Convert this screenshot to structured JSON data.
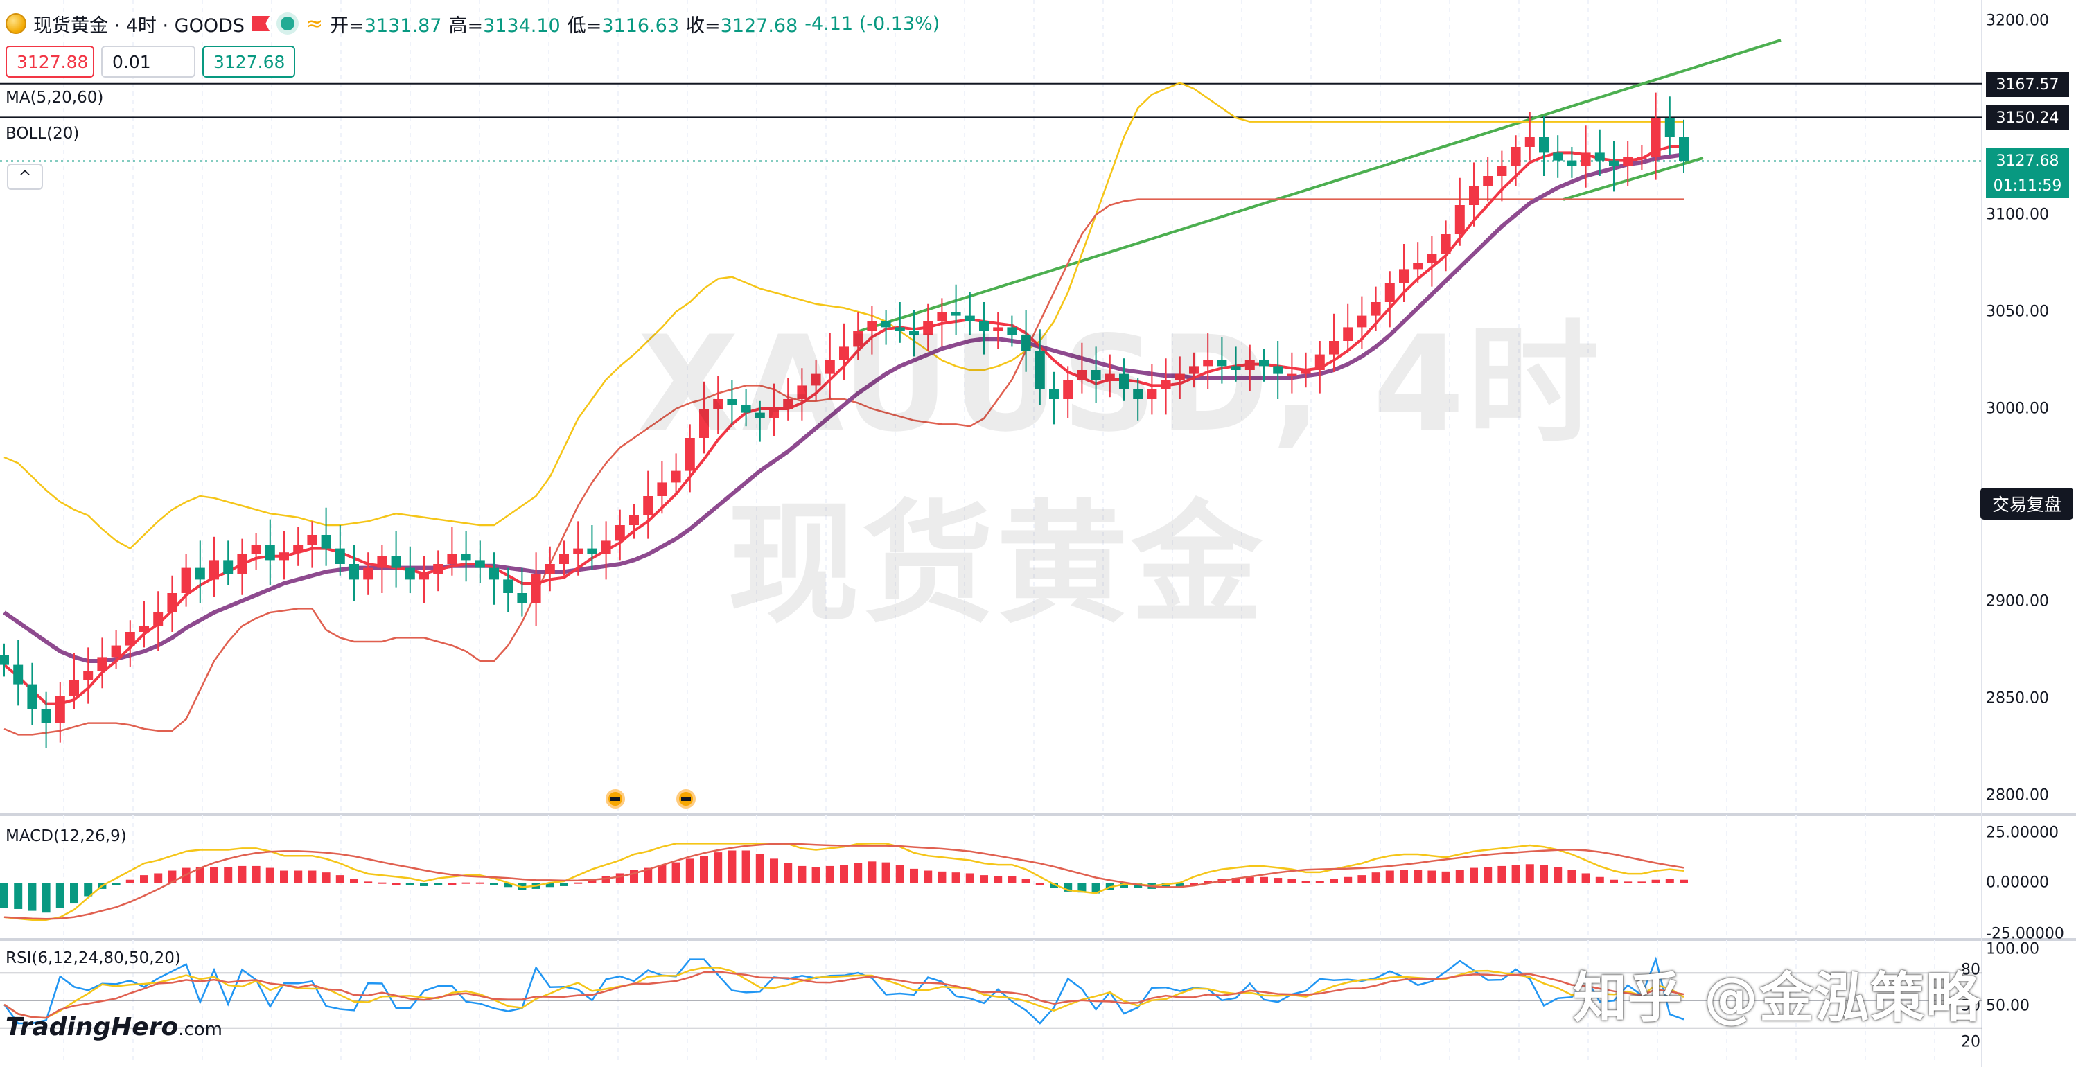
{
  "header": {
    "title": "现货黄金 · 4时 · GOODS",
    "open_label": "开=",
    "open": "3131.87",
    "high_label": "高=",
    "high": "3134.10",
    "low_label": "低=",
    "low": "3116.63",
    "close_label": "收=",
    "close": "3127.68",
    "change": "-4.11 (-0.13%)",
    "live_icon": "live-dot",
    "wave_icon": "≈"
  },
  "order_boxes": {
    "sell": "3127.88",
    "qty": "0.01",
    "buy": "3127.68"
  },
  "indicators": {
    "ma": "MA(5,20,60)",
    "boll": "BOLL(20)",
    "macd": "MACD(12,26,9)",
    "rsi": "RSI(6,12,24,80,50,20)",
    "collapse": "^"
  },
  "price_axis": {
    "ticks": [
      "3200.00",
      "3100.00",
      "3050.00",
      "3000.00",
      "2900.00",
      "2850.00",
      "2800.00"
    ],
    "tag_high": "3167.57",
    "tag_res": "3150.24",
    "tag_last": "3127.68",
    "countdown": "01:11:59",
    "replay": "交易复盘"
  },
  "macd_axis": [
    "25.00000",
    "0.00000",
    "-25.00000"
  ],
  "rsi_axis": [
    "100.00",
    "80",
    "50",
    "50.00",
    "20"
  ],
  "watermark": {
    "line1": "XAUUSD, 4时",
    "line2": "现货黄金"
  },
  "logo": {
    "name": "TradingHero",
    "suffix": ".com"
  },
  "credit": "知乎 @金泓策略",
  "colors": {
    "up": "#f23645",
    "down": "#089981",
    "ma5": "#f23645",
    "ma20": "#8e4a8f",
    "boll_up": "#f5c518",
    "boll_low": "#e06050",
    "trend": "#4caf50"
  },
  "chart_data": {
    "type": "candlestick",
    "symbol": "XAUUSD",
    "timeframe": "4时",
    "ylim": [
      2790,
      3210
    ],
    "closes": [
      2868,
      2858,
      2845,
      2838,
      2852,
      2860,
      2865,
      2872,
      2878,
      2885,
      2888,
      2895,
      2905,
      2918,
      2912,
      2922,
      2915,
      2925,
      2930,
      2922,
      2926,
      2930,
      2935,
      2928,
      2920,
      2912,
      2918,
      2924,
      2918,
      2912,
      2915,
      2920,
      2925,
      2922,
      2918,
      2912,
      2905,
      2900,
      2915,
      2920,
      2925,
      2928,
      2925,
      2932,
      2940,
      2945,
      2955,
      2962,
      2968,
      2985,
      3000,
      3005,
      3002,
      2998,
      2995,
      3000,
      3005,
      3012,
      3018,
      3025,
      3032,
      3040,
      3045,
      3042,
      3040,
      3038,
      3045,
      3050,
      3048,
      3045,
      3040,
      3042,
      3038,
      3030,
      3010,
      3005,
      3015,
      3020,
      3015,
      3018,
      3010,
      3005,
      3010,
      3015,
      3018,
      3022,
      3025,
      3022,
      3020,
      3025,
      3022,
      3018,
      3018,
      3020,
      3028,
      3035,
      3042,
      3048,
      3055,
      3065,
      3072,
      3075,
      3080,
      3090,
      3105,
      3115,
      3120,
      3125,
      3135,
      3140,
      3132,
      3128,
      3125,
      3132,
      3128,
      3125,
      3130,
      3130,
      3150,
      3140,
      3127.68
    ],
    "ma5": [
      2868,
      2862,
      2855,
      2848,
      2848,
      2850,
      2856,
      2864,
      2870,
      2877,
      2884,
      2889,
      2896,
      2904,
      2909,
      2913,
      2916,
      2920,
      2923,
      2924,
      2924,
      2926,
      2928,
      2928,
      2926,
      2923,
      2920,
      2919,
      2918,
      2917,
      2915,
      2917,
      2919,
      2920,
      2920,
      2918,
      2914,
      2910,
      2910,
      2912,
      2913,
      2918,
      2923,
      2927,
      2931,
      2937,
      2942,
      2949,
      2956,
      2965,
      2974,
      2984,
      2992,
      2998,
      3000,
      3000,
      3000,
      3003,
      3008,
      3015,
      3022,
      3030,
      3037,
      3041,
      3042,
      3041,
      3042,
      3044,
      3045,
      3046,
      3045,
      3044,
      3043,
      3039,
      3032,
      3025,
      3019,
      3016,
      3013,
      3015,
      3015,
      3014,
      3012,
      3012,
      3013,
      3016,
      3019,
      3021,
      3022,
      3023,
      3023,
      3022,
      3021,
      3020,
      3021,
      3025,
      3030,
      3036,
      3044,
      3052,
      3060,
      3067,
      3073,
      3079,
      3088,
      3097,
      3105,
      3113,
      3120,
      3127,
      3130,
      3132,
      3132,
      3131,
      3129,
      3128,
      3128,
      3129,
      3133,
      3135,
      3135
    ],
    "ma20": [
      2895,
      2890,
      2885,
      2880,
      2875,
      2872,
      2870,
      2870,
      2871,
      2873,
      2875,
      2878,
      2882,
      2887,
      2891,
      2895,
      2898,
      2901,
      2904,
      2907,
      2910,
      2912,
      2914,
      2916,
      2917,
      2918,
      2918,
      2918,
      2918,
      2918,
      2918,
      2918,
      2919,
      2919,
      2919,
      2919,
      2918,
      2917,
      2916,
      2916,
      2916,
      2917,
      2918,
      2919,
      2920,
      2922,
      2925,
      2929,
      2933,
      2938,
      2944,
      2950,
      2956,
      2962,
      2968,
      2973,
      2978,
      2984,
      2990,
      2996,
      3002,
      3008,
      3013,
      3018,
      3022,
      3025,
      3028,
      3031,
      3033,
      3035,
      3036,
      3036,
      3035,
      3034,
      3032,
      3030,
      3028,
      3026,
      3024,
      3022,
      3020,
      3019,
      3018,
      3017,
      3017,
      3016,
      3016,
      3016,
      3016,
      3016,
      3016,
      3016,
      3016,
      3017,
      3018,
      3020,
      3023,
      3027,
      3032,
      3038,
      3045,
      3052,
      3059,
      3066,
      3073,
      3080,
      3087,
      3094,
      3100,
      3106,
      3110,
      3114,
      3117,
      3120,
      3122,
      3124,
      3126,
      3127,
      3129,
      3130,
      3131
    ],
    "boll_upper": [
      2975,
      2972,
      2965,
      2958,
      2952,
      2948,
      2945,
      2938,
      2932,
      2928,
      2935,
      2942,
      2948,
      2952,
      2955,
      2954,
      2952,
      2950,
      2948,
      2946,
      2945,
      2944,
      2942,
      2940,
      2940,
      2941,
      2942,
      2944,
      2946,
      2945,
      2944,
      2943,
      2942,
      2941,
      2940,
      2940,
      2945,
      2950,
      2955,
      2965,
      2980,
      2995,
      3005,
      3015,
      3022,
      3028,
      3035,
      3042,
      3050,
      3055,
      3062,
      3067,
      3068,
      3065,
      3062,
      3060,
      3058,
      3056,
      3054,
      3053,
      3052,
      3050,
      3048,
      3045,
      3040,
      3035,
      3030,
      3025,
      3022,
      3020,
      3020,
      3022,
      3025,
      3030,
      3035,
      3045,
      3060,
      3080,
      3100,
      3120,
      3140,
      3155,
      3162,
      3165,
      3168,
      3165,
      3160,
      3155,
      3150,
      3148,
      3148,
      3148,
      3148,
      3148,
      3148,
      3148,
      3148,
      3148,
      3148,
      3148,
      3148,
      3148,
      3148,
      3148,
      3148,
      3148,
      3148,
      3148,
      3148,
      3148,
      3148,
      3148,
      3148,
      3148,
      3148,
      3148,
      3148,
      3148,
      3148,
      3148,
      3148
    ],
    "boll_lower": [
      2835,
      2832,
      2832,
      2833,
      2834,
      2836,
      2838,
      2838,
      2838,
      2837,
      2835,
      2834,
      2834,
      2840,
      2855,
      2870,
      2880,
      2888,
      2892,
      2895,
      2896,
      2897,
      2897,
      2886,
      2882,
      2880,
      2880,
      2880,
      2882,
      2882,
      2882,
      2880,
      2878,
      2875,
      2870,
      2870,
      2878,
      2890,
      2905,
      2920,
      2935,
      2950,
      2962,
      2972,
      2980,
      2985,
      2990,
      2995,
      3000,
      3003,
      3005,
      3008,
      3010,
      3012,
      3012,
      3010,
      3006,
      3004,
      3004,
      3005,
      3005,
      3003,
      3000,
      2998,
      2996,
      2994,
      2993,
      2992,
      2992,
      2991,
      2995,
      3005,
      3015,
      3030,
      3045,
      3060,
      3075,
      3090,
      3100,
      3105,
      3107,
      3108,
      3108,
      3108,
      3108,
      3108,
      3108,
      3108,
      3108,
      3108,
      3108,
      3108,
      3108,
      3108,
      3108,
      3108,
      3108,
      3108,
      3108,
      3108,
      3108,
      3108,
      3108,
      3108,
      3108,
      3108,
      3108,
      3108,
      3108,
      3108,
      3108,
      3108,
      3108,
      3108,
      3108,
      3108,
      3108,
      3108,
      3108,
      3108,
      3108
    ],
    "resistance_levels": [
      3167.57,
      3150.24
    ],
    "last_price": 3127.68,
    "macd_ylim": [
      -25,
      25
    ],
    "rsi_levels": [
      80,
      50,
      20
    ]
  }
}
